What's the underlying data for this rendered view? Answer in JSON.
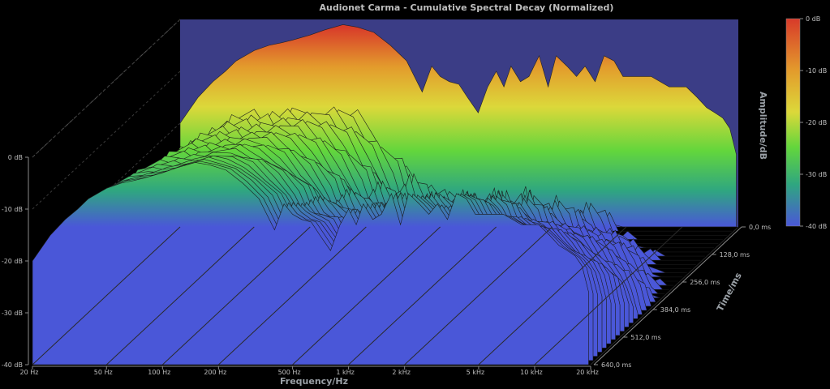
{
  "chart_data": {
    "type": "waterfall",
    "title": "Audionet Carma - Cumulative Spectral Decay (Normalized)",
    "xlabel": "Frequency/Hz",
    "ylabel": "Amplitude/dB",
    "zlabel": "Time/ms",
    "x_scale": "log",
    "x_ticks": [
      {
        "value": 20,
        "label": "20 Hz"
      },
      {
        "value": 50,
        "label": "50 Hz"
      },
      {
        "value": 100,
        "label": "100 Hz"
      },
      {
        "value": 200,
        "label": "200 Hz"
      },
      {
        "value": 500,
        "label": "500 Hz"
      },
      {
        "value": 1000,
        "label": "1 kHz"
      },
      {
        "value": 2000,
        "label": "2 kHz"
      },
      {
        "value": 5000,
        "label": "5 kHz"
      },
      {
        "value": 10000,
        "label": "10 kHz"
      },
      {
        "value": 20000,
        "label": "20 kHz"
      }
    ],
    "y_ticks": [
      {
        "value": 0,
        "label": "0 dB"
      },
      {
        "value": -10,
        "label": "-10 dB"
      },
      {
        "value": -20,
        "label": "-20 dB"
      },
      {
        "value": -30,
        "label": "-30 dB"
      },
      {
        "value": -40,
        "label": "-40 dB"
      }
    ],
    "ylim": [
      -40,
      0
    ],
    "z_ticks": [
      {
        "value": 0,
        "label": "0,0 ms"
      },
      {
        "value": 128,
        "label": "128,0 ms"
      },
      {
        "value": 256,
        "label": "256,0 ms"
      },
      {
        "value": 384,
        "label": "384,0 ms"
      },
      {
        "value": 512,
        "label": "512,0 ms"
      },
      {
        "value": 640,
        "label": "640,0 ms"
      }
    ],
    "zlim": [
      0,
      640
    ],
    "colorbar": {
      "labels": [
        "0 dB",
        "-10 dB",
        "-20 dB",
        "-30 dB",
        "-40 dB"
      ],
      "colors": [
        "#d83a2a",
        "#e39b2c",
        "#dcd83a",
        "#63d63c",
        "#2fa680",
        "#4a57d8"
      ]
    },
    "front_slice_x": [
      20,
      25,
      30,
      35,
      40,
      50,
      60,
      70,
      80,
      100,
      120,
      150,
      180,
      220,
      270,
      330,
      400,
      450,
      500,
      560,
      630,
      700,
      800,
      900,
      1000,
      1100,
      1200,
      1350,
      1500,
      1700,
      1900,
      2100,
      2400,
      2700,
      3000,
      3400,
      3800,
      4300,
      4800,
      5400,
      6000,
      6800,
      7600,
      8500,
      9500,
      10500,
      12000,
      13500,
      15000,
      16500,
      18000,
      19500
    ],
    "front_slice_y": [
      -20,
      -15,
      -12,
      -10,
      -8,
      -6,
      -5,
      -4.5,
      -4,
      -3,
      -2,
      -1,
      -1.5,
      -2.5,
      -5,
      -8,
      -14,
      -9,
      -11,
      -12,
      -12.5,
      -15,
      -18,
      -13,
      -10,
      -13,
      -9,
      -12,
      -11,
      -7,
      -13,
      -7,
      -9,
      -11,
      -9,
      -12,
      -7,
      -8,
      -11,
      -11,
      -11,
      -11,
      -12,
      -13,
      -13,
      -13,
      -15,
      -17,
      -18,
      -19,
      -21,
      -26
    ],
    "colors": {
      "background": "#000000",
      "back_wall": "#3b3d86",
      "grid": "#5a5a5a"
    }
  }
}
